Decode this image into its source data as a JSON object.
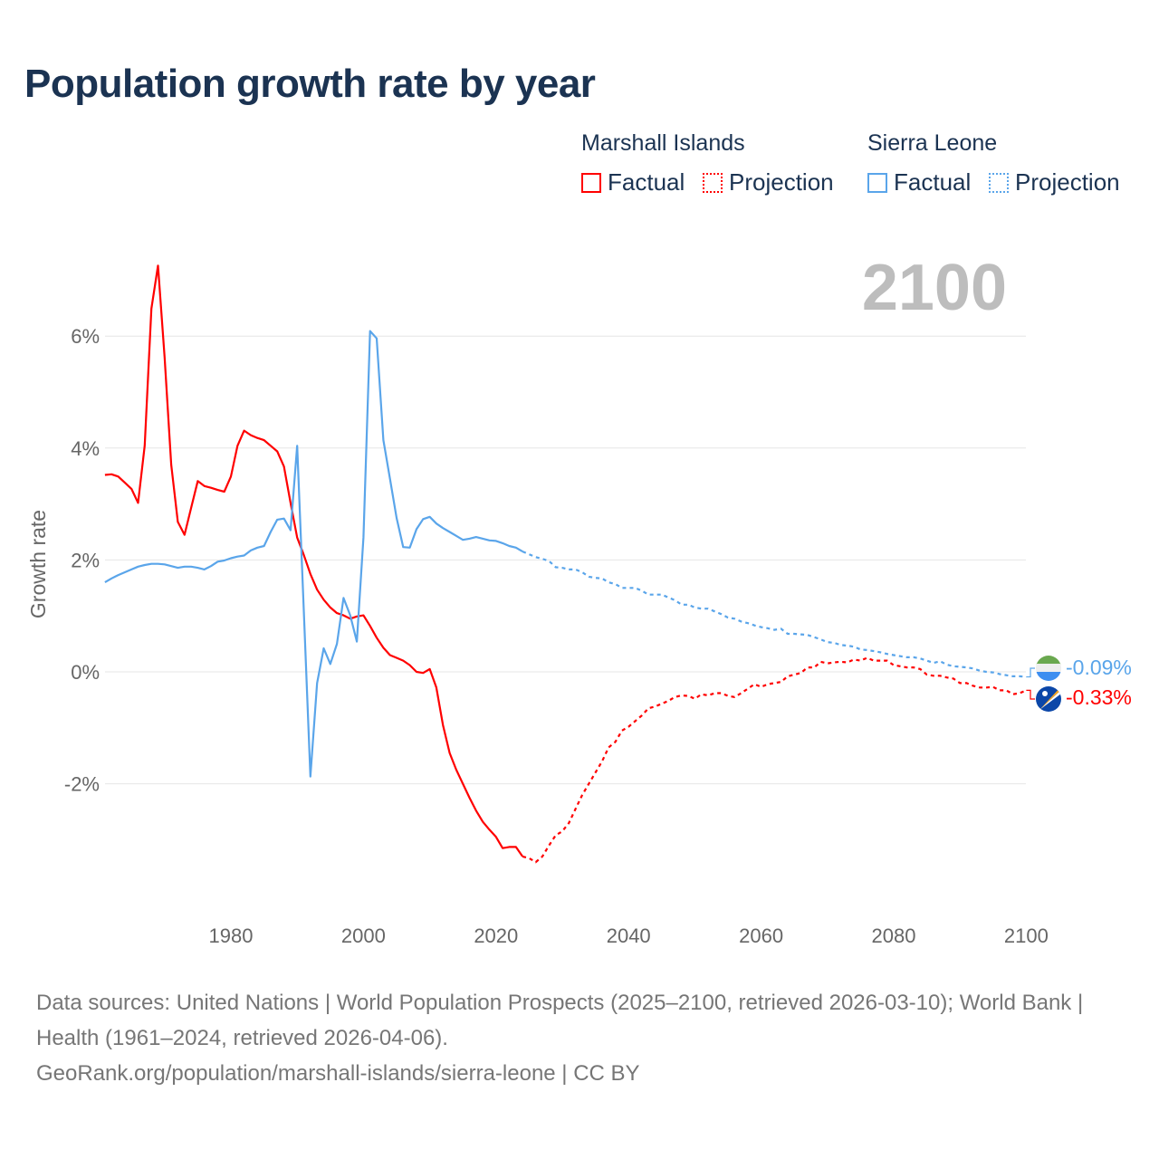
{
  "title": "Population growth rate by year",
  "legend": {
    "groups": [
      {
        "name": "Marshall Islands",
        "factual_label": "Factual",
        "projection_label": "Projection",
        "color": "#ff0000"
      },
      {
        "name": "Sierra Leone",
        "factual_label": "Factual",
        "projection_label": "Projection",
        "color": "#5aa5ea"
      }
    ]
  },
  "year_label": "2100",
  "end_labels": {
    "sierra_leone": "-0.09%",
    "marshall_islands": "-0.33%"
  },
  "footer": {
    "sources": "Data sources: United Nations | World Population Prospects (2025–2100, retrieved 2026-03-10); World Bank | Health (1961–2024, retrieved 2026-04-06).",
    "credit": "GeoRank.org/population/marshall-islands/sierra-leone | CC BY"
  },
  "chart_data": {
    "type": "line",
    "title": "Population growth rate by year",
    "xlabel": "",
    "ylabel": "Growth rate",
    "xlim": [
      1961,
      2100
    ],
    "ylim": [
      -4,
      7.5
    ],
    "x_ticks": [
      "1980",
      "2000",
      "2020",
      "2040",
      "2060",
      "2080",
      "2100"
    ],
    "x_tick_values": [
      1980,
      2000,
      2020,
      2040,
      2060,
      2080,
      2100
    ],
    "y_ticks": [
      "6%",
      "4%",
      "2%",
      "0%",
      "-2%"
    ],
    "y_tick_values": [
      6,
      4,
      2,
      0,
      -2
    ],
    "grid": true,
    "legend_position": "top-right",
    "factual_end_year": 2024,
    "start_year": 1961,
    "series": [
      {
        "name": "Marshall Islands",
        "color": "#ff0000",
        "values": [
          3.52,
          3.53,
          3.49,
          3.38,
          3.27,
          3.02,
          4.04,
          6.49,
          7.26,
          5.62,
          3.7,
          2.68,
          2.45,
          2.93,
          3.41,
          3.32,
          3.29,
          3.25,
          3.22,
          3.49,
          4.04,
          4.31,
          4.23,
          4.18,
          4.14,
          4.04,
          3.94,
          3.67,
          3.02,
          2.4,
          2.09,
          1.75,
          1.47,
          1.29,
          1.15,
          1.05,
          1.01,
          0.95,
          0.99,
          1.01,
          0.82,
          0.61,
          0.43,
          0.3,
          0.25,
          0.2,
          0.12,
          0.0,
          -0.02,
          0.05,
          -0.28,
          -0.95,
          -1.45,
          -1.75,
          -2.0,
          -2.25,
          -2.48,
          -2.68,
          -2.82,
          -2.95,
          -3.15,
          -3.13,
          -3.13,
          -3.3,
          -3.33,
          -3.4,
          -3.3,
          -3.1,
          -2.92,
          -2.85,
          -2.7,
          -2.45,
          -2.2,
          -2.0,
          -1.8,
          -1.6,
          -1.35,
          -1.25,
          -1.05,
          -0.98,
          -0.88,
          -0.78,
          -0.65,
          -0.62,
          -0.57,
          -0.52,
          -0.45,
          -0.42,
          -0.43,
          -0.48,
          -0.4,
          -0.42,
          -0.38,
          -0.38,
          -0.43,
          -0.45,
          -0.38,
          -0.3,
          -0.22,
          -0.27,
          -0.22,
          -0.2,
          -0.18,
          -0.08,
          -0.05,
          -0.02,
          0.08,
          0.08,
          0.18,
          0.15,
          0.17,
          0.18,
          0.17,
          0.22,
          0.2,
          0.25,
          0.2,
          0.2,
          0.2,
          0.12,
          0.1,
          0.08,
          0.08,
          0.05,
          -0.05,
          -0.07,
          -0.07,
          -0.1,
          -0.12,
          -0.2,
          -0.2,
          -0.25,
          -0.28,
          -0.28,
          -0.27,
          -0.33,
          -0.33,
          -0.4,
          -0.38,
          -0.33
        ]
      },
      {
        "name": "Sierra Leone",
        "color": "#5aa5ea",
        "values": [
          1.6,
          1.67,
          1.73,
          1.78,
          1.83,
          1.88,
          1.91,
          1.93,
          1.93,
          1.92,
          1.89,
          1.86,
          1.88,
          1.88,
          1.86,
          1.83,
          1.89,
          1.97,
          1.99,
          2.03,
          2.06,
          2.08,
          2.17,
          2.22,
          2.25,
          2.5,
          2.72,
          2.74,
          2.53,
          4.04,
          1.1,
          -1.87,
          -0.2,
          0.42,
          0.14,
          0.5,
          1.32,
          1.01,
          0.54,
          2.4,
          6.09,
          5.96,
          4.14,
          3.45,
          2.75,
          2.23,
          2.22,
          2.55,
          2.73,
          2.77,
          2.65,
          2.57,
          2.5,
          2.43,
          2.36,
          2.38,
          2.41,
          2.38,
          2.35,
          2.34,
          2.3,
          2.25,
          2.22,
          2.15,
          2.1,
          2.05,
          2.02,
          1.98,
          1.87,
          1.86,
          1.83,
          1.83,
          1.78,
          1.7,
          1.68,
          1.67,
          1.6,
          1.57,
          1.5,
          1.5,
          1.5,
          1.45,
          1.38,
          1.38,
          1.38,
          1.33,
          1.28,
          1.2,
          1.2,
          1.15,
          1.13,
          1.13,
          1.08,
          1.03,
          0.97,
          0.95,
          0.9,
          0.87,
          0.83,
          0.8,
          0.78,
          0.75,
          0.77,
          0.68,
          0.68,
          0.67,
          0.66,
          0.62,
          0.58,
          0.53,
          0.52,
          0.48,
          0.47,
          0.45,
          0.4,
          0.39,
          0.37,
          0.35,
          0.32,
          0.3,
          0.28,
          0.26,
          0.26,
          0.24,
          0.2,
          0.16,
          0.19,
          0.13,
          0.1,
          0.09,
          0.08,
          0.06,
          0.02,
          0.0,
          -0.01,
          -0.04,
          -0.06,
          -0.08,
          -0.08,
          -0.09
        ]
      }
    ]
  }
}
